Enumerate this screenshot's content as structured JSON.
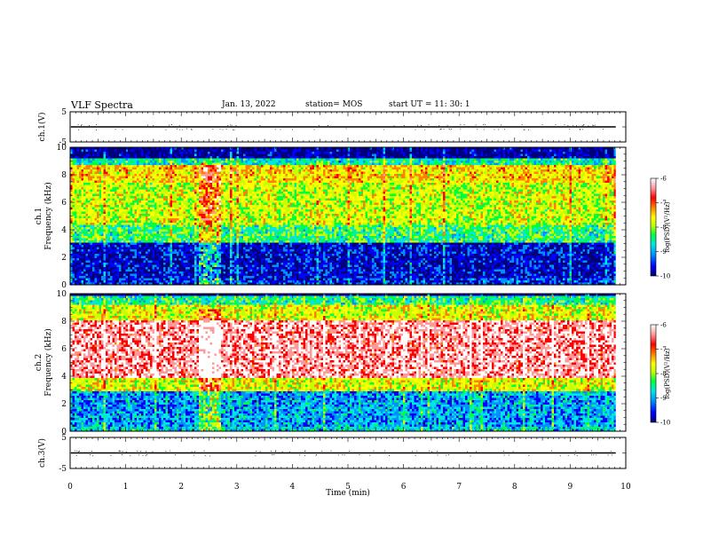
{
  "header": {
    "title": "VLF Spectra",
    "date": "Jan. 13, 2022",
    "station": "station= MOS",
    "start": "start UT = 11: 30: 1"
  },
  "colors": {
    "scale": [
      "#00007a",
      "#0000ff",
      "#0090ff",
      "#00e6e6",
      "#00ff40",
      "#c8ff00",
      "#ffff00",
      "#ff8000",
      "#ff0000",
      "#ff9a9a",
      "#ffffff"
    ]
  },
  "chart_data": [
    {
      "type": "line",
      "name": "ch1-waveform",
      "ylabel": "ch.1(V)",
      "ylim": [
        -5,
        5
      ],
      "y_ticks": [
        "5",
        "-5"
      ],
      "baseline": 0,
      "xlim": [
        0,
        10
      ]
    },
    {
      "type": "heatmap",
      "name": "ch1-spectrogram",
      "ylabel_top": "ch.1",
      "ylabel": "Frequency (kHz)",
      "ylim": [
        0,
        10
      ],
      "y_ticks": [
        "0",
        "2",
        "4",
        "6",
        "8",
        "10"
      ],
      "xlim": [
        0,
        10
      ],
      "x_data_end": 9.82,
      "colorbar": {
        "label": "log(PSD)(V²/Hz)",
        "range": [
          -10,
          -6
        ],
        "ticks": [
          "-6",
          "-7",
          "-8",
          "-9",
          "-10"
        ]
      },
      "bands_khz_logpsd": [
        {
          "f": [
            0.0,
            0.5
          ],
          "level": -9.4
        },
        {
          "f": [
            0.5,
            3.2
          ],
          "level": -9.6
        },
        {
          "f": [
            3.2,
            4.5
          ],
          "level": -8.4
        },
        {
          "f": [
            4.5,
            7.5
          ],
          "level": -7.9
        },
        {
          "f": [
            7.5,
            8.8
          ],
          "level": -7.6
        },
        {
          "f": [
            8.8,
            9.3
          ],
          "level": -8.6
        },
        {
          "f": [
            9.3,
            10.0
          ],
          "level": -9.8
        }
      ],
      "burst_min": [
        2.3,
        2.7
      ]
    },
    {
      "type": "heatmap",
      "name": "ch2-spectrogram",
      "ylabel_top": "ch.2",
      "ylabel": "Frequency (kHz)",
      "ylim": [
        0,
        10
      ],
      "y_ticks": [
        "0",
        "2",
        "4",
        "6",
        "8",
        "10"
      ],
      "xlim": [
        0,
        10
      ],
      "x_data_end": 9.82,
      "colorbar": {
        "label": "log(PSD)(V²/Hz)",
        "range": [
          -10,
          -6
        ],
        "ticks": [
          "-6",
          "-7",
          "-8",
          "-9",
          "-10"
        ]
      },
      "bands_khz_logpsd": [
        {
          "f": [
            0.0,
            0.4
          ],
          "level": -8.8
        },
        {
          "f": [
            0.4,
            3.0
          ],
          "level": -9.0
        },
        {
          "f": [
            3.0,
            4.0
          ],
          "level": -7.8
        },
        {
          "f": [
            4.0,
            8.2
          ],
          "level": -6.5
        },
        {
          "f": [
            8.2,
            9.2
          ],
          "level": -7.8
        },
        {
          "f": [
            9.2,
            10.0
          ],
          "level": -8.5
        }
      ],
      "burst_min": [
        2.3,
        2.7
      ]
    },
    {
      "type": "line",
      "name": "ch3-waveform",
      "ylabel": "ch.3(V)",
      "ylim": [
        -5,
        5
      ],
      "y_ticks": [
        "5",
        "-5"
      ],
      "baseline": 0,
      "xlim": [
        0,
        10
      ]
    }
  ],
  "xaxis": {
    "label": "Time (min)",
    "ticks": [
      "0",
      "1",
      "2",
      "3",
      "4",
      "5",
      "6",
      "7",
      "8",
      "9",
      "10"
    ]
  }
}
